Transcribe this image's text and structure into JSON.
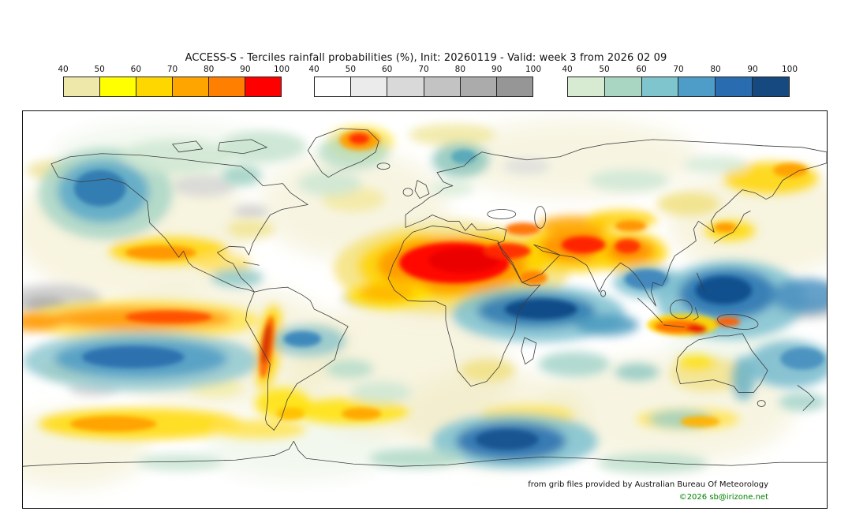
{
  "title": "ACCESS-S - Terciles rainfall probabilities (%), Init: 20260119 - Valid: week 3 from 2026 02 09",
  "legends": {
    "ticks": [
      "40",
      "50",
      "60",
      "70",
      "80",
      "90",
      "100"
    ],
    "bars": [
      {
        "id": "dry",
        "colors": [
          "#eee8aa",
          "#ffff00",
          "#ffd700",
          "#ffa500",
          "#ff7f00",
          "#ff0000"
        ]
      },
      {
        "id": "neutral",
        "colors": [
          "#ffffff",
          "#ebebeb",
          "#d9d9d9",
          "#c3c3c3",
          "#ababab",
          "#969696"
        ]
      },
      {
        "id": "wet",
        "colors": [
          "#d6ebd2",
          "#a9d6c2",
          "#7fc5ce",
          "#4e9dc8",
          "#2a6cb0",
          "#16497f"
        ]
      }
    ]
  },
  "attribution": {
    "source": "from grib files provided by Australian Bureau Of Meteorology",
    "copyright": "©2026 sb@irizone.net",
    "copyright_color": "#008000"
  },
  "map": {
    "projection": "equirectangular-world",
    "description": "Tercile rainfall probability field: dry terciles shaded yellow-orange-red, neutral shaded grey, wet terciles shaded green-blue over a world coastline map"
  }
}
